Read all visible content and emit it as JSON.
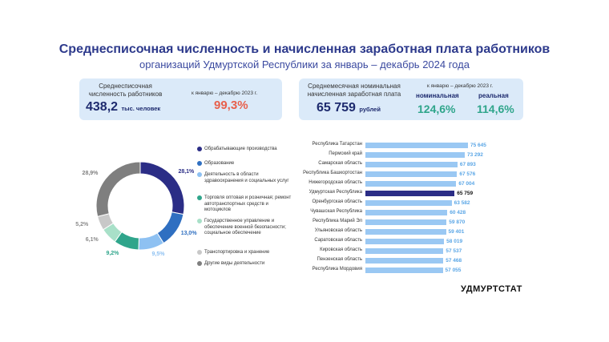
{
  "header": {
    "title": "Среднесписочная численность и начисленная заработная плата работников",
    "subtitle": "организаций Удмуртской Республики за январь – декабрь 2024 года"
  },
  "employment_card": {
    "label_line1": "Среднесписочная",
    "label_line2": "численность работников",
    "value": "438,2",
    "unit": "тыс. человек",
    "compare_label": "к январю – декабрю 2023 г.",
    "compare_value": "99,3%"
  },
  "wage_card": {
    "label_line1": "Среднемесячная номинальная",
    "label_line2": "начисленная заработная плата",
    "value": "65 759",
    "unit": "рублей",
    "compare_label": "к январю – декабрю 2023 г.",
    "nominal_label": "номинальная",
    "nominal_value": "124,6%",
    "real_label": "реальная",
    "real_value": "114,6%"
  },
  "colors": {
    "accent": "#2d3a8c",
    "card_bg": "#dbeaf9",
    "bar": "#9ac8f3",
    "bar_highlight": "#2b2d86",
    "red": "#e8604c",
    "green": "#2fa58b"
  },
  "logo": "УДМУРТСТАТ",
  "chart_data": [
    {
      "type": "pie",
      "variant": "donut",
      "categories": [
        "Обрабатывающие производства",
        "Образование",
        "Деятельность в области здравоохранения и социальных услуг",
        "Торговля оптовая и розничная; ремонт автотранспортных средств и мотоциклов",
        "Государственное управление и обеспечение военной безопасности; социальное обеспечение",
        "Транспортировка и хранение",
        "Другие виды деятельности"
      ],
      "values": [
        28.1,
        13.0,
        9.5,
        9.2,
        6.1,
        5.2,
        28.9
      ],
      "labels": [
        "28,1%",
        "13,0%",
        "9,5%",
        "9,2%",
        "6,1%",
        "5,2%",
        "28,9%"
      ],
      "colors": [
        "#2b2d86",
        "#2f6fc1",
        "#8ec1f2",
        "#2fa58b",
        "#a8e0c8",
        "#c8c8c8",
        "#7f7f7f"
      ],
      "legend": "right"
    },
    {
      "type": "bar",
      "orientation": "horizontal",
      "categories": [
        "Республика Татарстан",
        "Пермский край",
        "Самарская область",
        "Республика Башкортостан",
        "Нижегородская область",
        "Удмуртская Республика",
        "Оренбургская область",
        "Чувашская Республика",
        "Республика Марий Эл",
        "Ульяновская область",
        "Саратовская область",
        "Кировская область",
        "Пензенская область",
        "Республика Мордовия"
      ],
      "values": [
        75645,
        73292,
        67893,
        67576,
        67004,
        65759,
        63582,
        60428,
        59870,
        59401,
        58019,
        57537,
        57468,
        57055
      ],
      "labels": [
        "75 645",
        "73 292",
        "67 893",
        "67 576",
        "67 004",
        "65 759",
        "63 582",
        "60 428",
        "59 870",
        "59 401",
        "58 019",
        "57 537",
        "57 468",
        "57 055"
      ],
      "highlight": "Удмуртская Республика"
    }
  ]
}
